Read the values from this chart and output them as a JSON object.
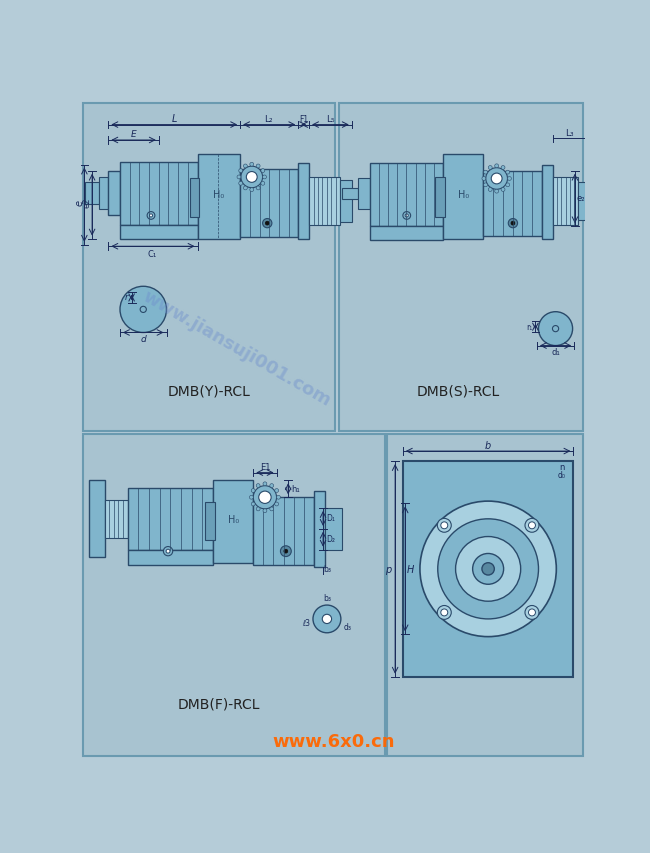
{
  "bg_color": "#b5ccd8",
  "panel_bg": "#a8c3d0",
  "border_color": "#6a9ab0",
  "machine_blue": "#80b5cc",
  "machine_mid": "#6a9fb8",
  "machine_light": "#a8d0e0",
  "machine_dark": "#5888a0",
  "line_color": "#2a4a6a",
  "text_color": "#222222",
  "dim_color": "#1a2a5a",
  "label1": "DMB(Y)-RCL",
  "label2": "DMB(S)-RCL",
  "label3": "DMB(F)-RCL",
  "wm1_text": "www.jiansuji001.com",
  "wm2_text": "www.6x0.cn"
}
